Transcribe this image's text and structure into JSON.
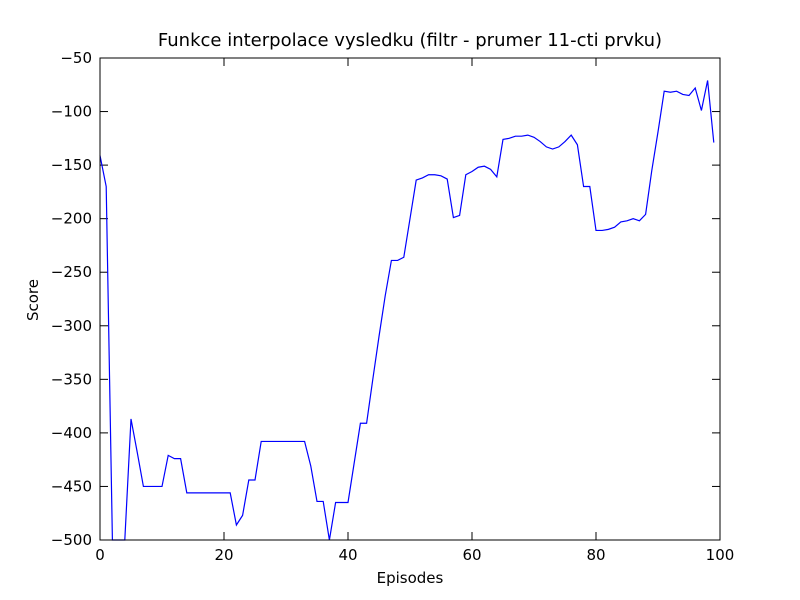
{
  "chart_data": {
    "type": "line",
    "title": "Funkce interpolace vysledku  (filtr - prumer 11-cti prvku)",
    "x_label": "Episodes",
    "y_label": "Score",
    "x": [
      0,
      1,
      2,
      3,
      4,
      5,
      6,
      7,
      8,
      9,
      10,
      11,
      12,
      13,
      14,
      15,
      16,
      17,
      18,
      19,
      20,
      21,
      22,
      23,
      24,
      25,
      26,
      27,
      28,
      29,
      30,
      31,
      32,
      33,
      34,
      35,
      36,
      37,
      38,
      39,
      40,
      41,
      42,
      43,
      44,
      45,
      46,
      47,
      48,
      49,
      50,
      51,
      52,
      53,
      54,
      55,
      56,
      57,
      58,
      59,
      60,
      61,
      62,
      63,
      64,
      65,
      66,
      67,
      68,
      69,
      70,
      71,
      72,
      73,
      74,
      75,
      76,
      77,
      78,
      79,
      80,
      81,
      82,
      83,
      84,
      85,
      86,
      87,
      88,
      89,
      90,
      91,
      92,
      93,
      94,
      95,
      96,
      97,
      98,
      99
    ],
    "series": [
      {
        "name": "Score",
        "color": "#0000ff",
        "values": [
          -141,
          -170,
          -500,
          -500,
          -500,
          -387,
          -418,
          -450,
          -450,
          -450,
          -450,
          -421,
          -424,
          -424,
          -456,
          -456,
          -456,
          -456,
          -456,
          -456,
          -456,
          -456,
          -486,
          -477,
          -444,
          -444,
          -408,
          -408,
          -408,
          -408,
          -408,
          -408,
          -408,
          -408,
          -431,
          -464,
          -464,
          -500,
          -465,
          -465,
          -465,
          -428,
          -391,
          -391,
          -350,
          -310,
          -272,
          -239,
          -239,
          -236,
          -200,
          -164,
          -162,
          -159,
          -159,
          -160,
          -163,
          -199,
          -197,
          -159,
          -156,
          -152,
          -151,
          -154,
          -161,
          -126,
          -125,
          -123,
          -123,
          -122,
          -124,
          -128,
          -133,
          -135,
          -133,
          -128,
          -122,
          -131,
          -170,
          -170,
          -211,
          -211,
          -210,
          -208,
          -203,
          -202,
          -200,
          -202,
          -196,
          -155,
          -119,
          -81,
          -82,
          -81,
          -84,
          -85,
          -78,
          -99,
          -71,
          -129
        ]
      }
    ],
    "xlim": [
      0,
      100
    ],
    "ylim": [
      -500,
      -50
    ],
    "xticks": [
      0,
      20,
      40,
      60,
      80,
      100
    ],
    "yticks": [
      {
        "value": -500,
        "label": "−500"
      },
      {
        "value": -450,
        "label": "−450"
      },
      {
        "value": -400,
        "label": "−400"
      },
      {
        "value": -350,
        "label": "−350"
      },
      {
        "value": -300,
        "label": "−300"
      },
      {
        "value": -250,
        "label": "−250"
      },
      {
        "value": -200,
        "label": "−200"
      },
      {
        "value": -150,
        "label": "−150"
      },
      {
        "value": -100,
        "label": "−100"
      },
      {
        "value": -50,
        "label": "−50"
      }
    ]
  }
}
